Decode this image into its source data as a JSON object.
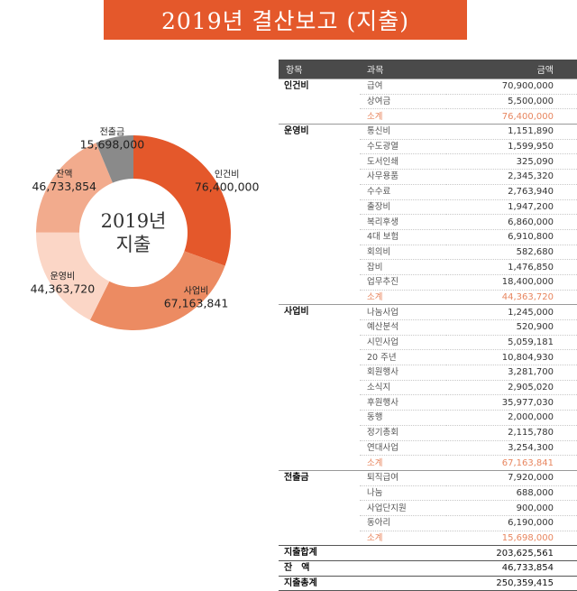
{
  "title": "2019년 결산보고 (지출)",
  "chart_data": {
    "type": "pie",
    "center_label": [
      "2019년",
      "지출"
    ],
    "slices": [
      {
        "label": "인건비",
        "value": 76400000,
        "value_text": "76,400,000",
        "color": "#e4582b"
      },
      {
        "label": "사업비",
        "value": 67163841,
        "value_text": "67,163,841",
        "color": "#ec8b62"
      },
      {
        "label": "운영비",
        "value": 44363720,
        "value_text": "44,363,720",
        "color": "#fbd6c6"
      },
      {
        "label": "잔액",
        "value": 46733854,
        "value_text": "46,733,854",
        "color": "#f2ab8d"
      },
      {
        "label": "전출금",
        "value": 15698000,
        "value_text": "15,698,000",
        "color": "#8a8a8a"
      }
    ]
  },
  "table": {
    "headers": {
      "category": "항목",
      "item": "과목",
      "amount": "금액"
    },
    "groups": [
      {
        "category": "인건비",
        "rows": [
          {
            "item": "급여",
            "amount": "70,900,000"
          },
          {
            "item": "상여금",
            "amount": "5,500,000"
          },
          {
            "item": "소계",
            "amount": "76,400,000",
            "subtotal": true
          }
        ]
      },
      {
        "category": "운영비",
        "rows": [
          {
            "item": "통신비",
            "amount": "1,151,890"
          },
          {
            "item": "수도광열",
            "amount": "1,599,950"
          },
          {
            "item": "도서인쇄",
            "amount": "325,090"
          },
          {
            "item": "사무용품",
            "amount": "2,345,320"
          },
          {
            "item": "수수료",
            "amount": "2,763,940"
          },
          {
            "item": "출장비",
            "amount": "1,947,200"
          },
          {
            "item": "복리후생",
            "amount": "6,860,000"
          },
          {
            "item": "4대 보험",
            "amount": "6,910,800"
          },
          {
            "item": "회의비",
            "amount": "582,680"
          },
          {
            "item": "잡비",
            "amount": "1,476,850"
          },
          {
            "item": "업무추진",
            "amount": "18,400,000"
          },
          {
            "item": "소계",
            "amount": "44,363,720",
            "subtotal": true
          }
        ]
      },
      {
        "category": "사업비",
        "rows": [
          {
            "item": "나눔사업",
            "amount": "1,245,000"
          },
          {
            "item": "예산분석",
            "amount": "520,900"
          },
          {
            "item": "시민사업",
            "amount": "5,059,181"
          },
          {
            "item": "20 주년",
            "amount": "10,804,930"
          },
          {
            "item": "회원행사",
            "amount": "3,281,700"
          },
          {
            "item": "소식지",
            "amount": "2,905,020"
          },
          {
            "item": "후원행사",
            "amount": "35,977,030"
          },
          {
            "item": "동행",
            "amount": "2,000,000"
          },
          {
            "item": "정기총회",
            "amount": "2,115,780"
          },
          {
            "item": "연대사업",
            "amount": "3,254,300"
          },
          {
            "item": "소계",
            "amount": "67,163,841",
            "subtotal": true
          }
        ]
      },
      {
        "category": "전출금",
        "rows": [
          {
            "item": "퇴직급여",
            "amount": "7,920,000"
          },
          {
            "item": "나눔",
            "amount": "688,000"
          },
          {
            "item": "사업단지원",
            "amount": "900,000"
          },
          {
            "item": "동아리",
            "amount": "6,190,000"
          },
          {
            "item": "소계",
            "amount": "15,698,000",
            "subtotal": true
          }
        ]
      }
    ],
    "totals": [
      {
        "label": "지출합계",
        "amount": "203,625,561"
      },
      {
        "label": "잔　액",
        "amount": "46,733,854"
      },
      {
        "label": "지출총계",
        "amount": "250,359,415"
      }
    ]
  }
}
